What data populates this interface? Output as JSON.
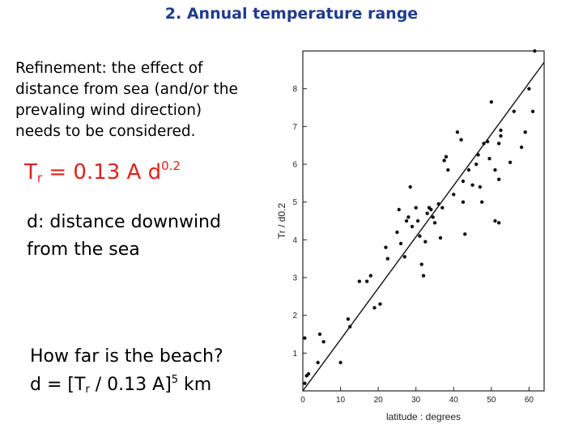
{
  "title": "2. Annual temperature range",
  "refinement": "Refinement: the effect of distance from sea (and/or the prevaling wind direction) needs to be considered.",
  "formula": {
    "t": "T",
    "sub": "r",
    "body": " = 0.13 A d",
    "sup": "0.2"
  },
  "distance_def": "d: distance downwind from the sea",
  "beach_question": "How far is the beach?",
  "beach_formula": {
    "pre": "d = [T",
    "sub": "r",
    "mid": " / 0.13 A]",
    "sup": "5",
    "post": " km"
  },
  "colors": {
    "title": "#1f3b8a",
    "formula": "#e0221b",
    "points": "#111111"
  },
  "chart_data": {
    "type": "scatter",
    "xlabel": "latitude : degrees",
    "ylabel": "Tr / d0.2",
    "xlim": [
      0,
      64
    ],
    "ylim": [
      0,
      9
    ],
    "xticks": [
      0,
      10,
      20,
      30,
      40,
      50,
      60
    ],
    "yticks": [
      1,
      2,
      3,
      4,
      5,
      6,
      7,
      8
    ],
    "grid": false,
    "fit_line": {
      "x": [
        0,
        64
      ],
      "y": [
        0,
        8.7
      ]
    },
    "points": [
      [
        0.5,
        0.2
      ],
      [
        1,
        0.4
      ],
      [
        1.5,
        0.45
      ],
      [
        0.5,
        1.4
      ],
      [
        4,
        0.75
      ],
      [
        4.5,
        1.5
      ],
      [
        5.5,
        1.3
      ],
      [
        10,
        0.75
      ],
      [
        12,
        1.9
      ],
      [
        12.5,
        1.7
      ],
      [
        15,
        2.9
      ],
      [
        17,
        2.9
      ],
      [
        18,
        3.05
      ],
      [
        19,
        2.2
      ],
      [
        20.5,
        2.3
      ],
      [
        22,
        3.8
      ],
      [
        22.5,
        3.5
      ],
      [
        25,
        4.2
      ],
      [
        25.5,
        4.8
      ],
      [
        26,
        3.9
      ],
      [
        27,
        3.55
      ],
      [
        27.5,
        4.5
      ],
      [
        28,
        4.6
      ],
      [
        28.5,
        5.4
      ],
      [
        29,
        4.35
      ],
      [
        30,
        4.85
      ],
      [
        30.5,
        4.5
      ],
      [
        31,
        4.1
      ],
      [
        31.5,
        3.35
      ],
      [
        32,
        3.05
      ],
      [
        32.5,
        3.95
      ],
      [
        33,
        4.7
      ],
      [
        33.5,
        4.85
      ],
      [
        34,
        4.8
      ],
      [
        34.5,
        4.6
      ],
      [
        35,
        4.45
      ],
      [
        36,
        4.95
      ],
      [
        36.5,
        4.05
      ],
      [
        37,
        4.85
      ],
      [
        37.5,
        6.1
      ],
      [
        38,
        6.2
      ],
      [
        38.5,
        5.85
      ],
      [
        40,
        5.2
      ],
      [
        41,
        6.85
      ],
      [
        42,
        6.65
      ],
      [
        42.5,
        5.0
      ],
      [
        42.5,
        5.55
      ],
      [
        43,
        4.15
      ],
      [
        44,
        5.85
      ],
      [
        45,
        5.45
      ],
      [
        46,
        6.0
      ],
      [
        46.5,
        6.25
      ],
      [
        47,
        5.4
      ],
      [
        47.5,
        5.0
      ],
      [
        48,
        6.55
      ],
      [
        49,
        6.6
      ],
      [
        49.5,
        6.15
      ],
      [
        50,
        7.65
      ],
      [
        51,
        4.5
      ],
      [
        51,
        5.85
      ],
      [
        52,
        6.55
      ],
      [
        52.5,
        6.9
      ],
      [
        52,
        5.6
      ],
      [
        52,
        4.45
      ],
      [
        52.5,
        6.75
      ],
      [
        55,
        6.05
      ],
      [
        56,
        7.4
      ],
      [
        58,
        6.45
      ],
      [
        59,
        6.85
      ],
      [
        60,
        8.0
      ],
      [
        61,
        7.4
      ],
      [
        61.5,
        9.0
      ]
    ]
  }
}
